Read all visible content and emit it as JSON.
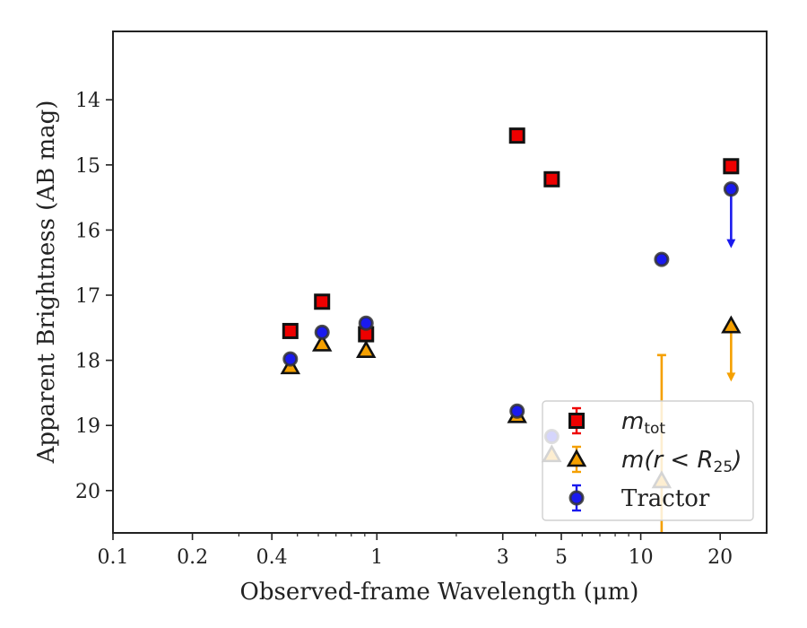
{
  "chart_data": {
    "type": "scatter",
    "title": "",
    "xlabel": "Observed-frame Wavelength (μm)",
    "ylabel": "Apparent Brightness (AB mag)",
    "xscale": "log",
    "xlim": [
      0.1,
      30
    ],
    "ylim": [
      20.65,
      12.95
    ],
    "y_inverted": true,
    "x_ticks": [
      0.1,
      0.2,
      0.4,
      1,
      3,
      5,
      10,
      20
    ],
    "x_tick_labels": [
      "0.1",
      "0.2",
      "0.4",
      "1",
      "3",
      "5",
      "10",
      "20"
    ],
    "y_ticks": [
      14,
      15,
      16,
      17,
      18,
      19,
      20
    ],
    "y_tick_labels": [
      "14",
      "15",
      "16",
      "17",
      "18",
      "19",
      "20"
    ],
    "grid": false,
    "legend_position": "lower-right",
    "series": [
      {
        "name": "m_tot",
        "legend_text": "m",
        "legend_sub": "tot",
        "marker": "square",
        "color": "#ee0000",
        "edge": "#111111",
        "points": [
          {
            "x": 0.47,
            "y": 17.55,
            "err": 0
          },
          {
            "x": 0.62,
            "y": 17.1,
            "err": 0
          },
          {
            "x": 0.91,
            "y": 17.6,
            "err": 0
          },
          {
            "x": 3.4,
            "y": 14.55,
            "err": 0
          },
          {
            "x": 4.6,
            "y": 15.22,
            "err": 0
          },
          {
            "x": 22,
            "y": 15.02,
            "err": 0
          }
        ]
      },
      {
        "name": "m(r < R25)",
        "legend_text": "m(r < R",
        "legend_sub": "25",
        "legend_close": ")",
        "marker": "triangle",
        "color": "#f5a000",
        "edge": "#111111",
        "errcolor": "#f5a000",
        "points": [
          {
            "x": 0.47,
            "y": 18.1,
            "err": 0
          },
          {
            "x": 0.62,
            "y": 17.75,
            "err": 0
          },
          {
            "x": 0.91,
            "y": 17.85,
            "err": 0
          },
          {
            "x": 3.4,
            "y": 18.85,
            "err": 0
          },
          {
            "x": 4.6,
            "y": 19.45,
            "err": 0
          },
          {
            "x": 12,
            "y": 19.85,
            "err_low": 17.92,
            "err_high": 21.0
          },
          {
            "x": 22,
            "y": 17.47,
            "upper_limit": true,
            "arrow_to": 18.3
          }
        ]
      },
      {
        "name": "Tractor",
        "legend_text": "Tractor",
        "marker": "circle",
        "color": "#1a1aee",
        "edge": "#333333",
        "errcolor": "#1a1aee",
        "points": [
          {
            "x": 0.47,
            "y": 17.98,
            "err": 0.05
          },
          {
            "x": 0.62,
            "y": 17.57,
            "err": 0.05
          },
          {
            "x": 0.91,
            "y": 17.43,
            "err": 0.06
          },
          {
            "x": 3.4,
            "y": 18.78,
            "err": 0.05
          },
          {
            "x": 4.6,
            "y": 19.17,
            "err": 0.04
          },
          {
            "x": 12,
            "y": 16.45,
            "err": 0.05
          },
          {
            "x": 22,
            "y": 15.37,
            "upper_limit": true,
            "arrow_to": 16.25
          }
        ]
      }
    ]
  }
}
